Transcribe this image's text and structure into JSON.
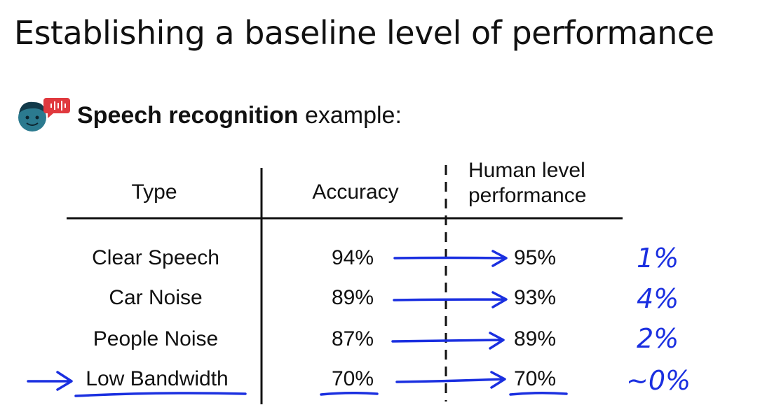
{
  "title": "Establishing a baseline level of performance",
  "subtitle": {
    "bold": "Speech recognition",
    "rest": " example:"
  },
  "table": {
    "headers": {
      "type": "Type",
      "accuracy": "Accuracy",
      "human_line1": "Human level",
      "human_line2": "performance"
    },
    "rows": [
      {
        "type": "Clear Speech",
        "accuracy": "94%",
        "human": "95%",
        "gap": "1%"
      },
      {
        "type": "Car Noise",
        "accuracy": "89%",
        "human": "93%",
        "gap": "4%"
      },
      {
        "type": "People Noise",
        "accuracy": "87%",
        "human": "89%",
        "gap": "2%"
      },
      {
        "type": "Low Bandwidth",
        "accuracy": "70%",
        "human": "70%",
        "gap": "~0%"
      }
    ]
  },
  "colors": {
    "ink": "#1a2fe0",
    "icon_face": "#2b7a8f",
    "icon_hair": "#123a4a",
    "speech_bubble": "#e0393e"
  },
  "icons": {
    "speaker": "speaking-person-icon"
  }
}
